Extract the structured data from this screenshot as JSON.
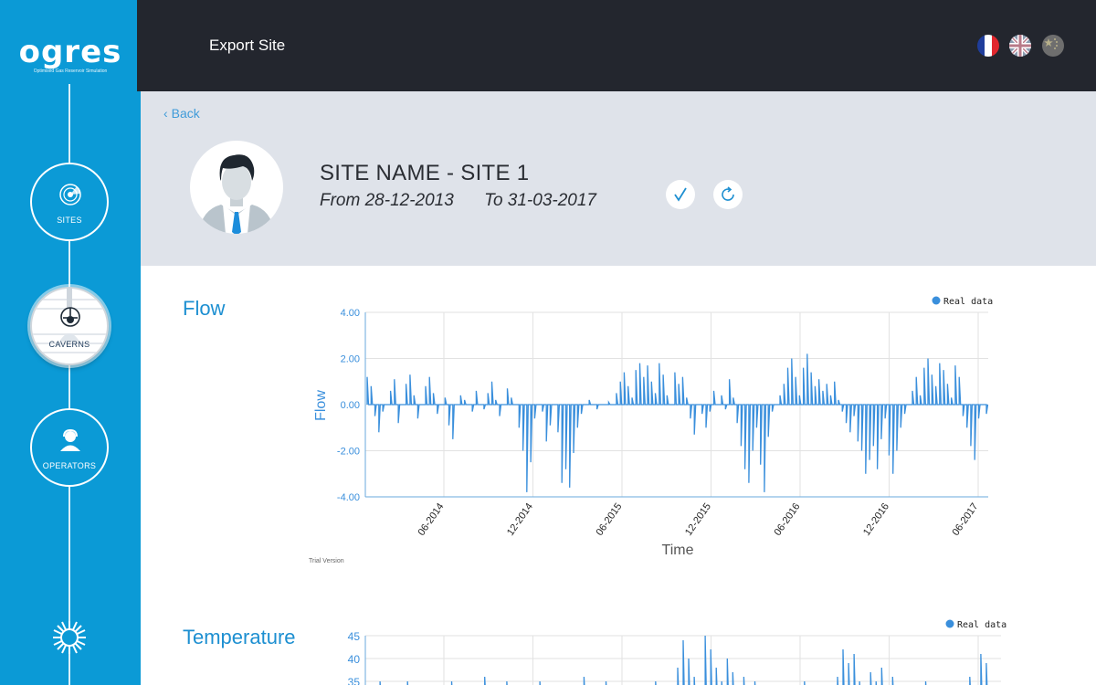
{
  "app": {
    "logo_text": "ogres",
    "logo_tagline": "Optimised        Gas Reservoir Simulation"
  },
  "sidebar": {
    "items": [
      {
        "label": "SITES",
        "icon": "radar-icon"
      },
      {
        "label": "CAVERNS",
        "icon": "cavern-icon"
      },
      {
        "label": "OPERATORS",
        "icon": "operator-icon"
      }
    ],
    "active": "CAVERNS"
  },
  "topbar": {
    "title": "Export Site",
    "languages": [
      "fr-flag-icon",
      "uk-flag-icon",
      "cn-flag-icon"
    ]
  },
  "header": {
    "back_label": "Back",
    "site_name": "SITE NAME - SITE 1",
    "from_label": "From 28-12-2013",
    "to_label": "To 31-03-2017"
  },
  "colors": {
    "sidebar": "#0b9ad6",
    "topbar": "#23262e",
    "header_panel": "#dfe3ea",
    "accent": "#1d8fd1",
    "series": "#3a8fdc"
  },
  "chart_data": [
    {
      "type": "line",
      "title": "Flow",
      "xlabel": "Time",
      "ylabel": "Flow",
      "legend": "Real data",
      "legend_position": "top-right",
      "footnote": "Trial Version",
      "x_ticks": [
        "06-2014",
        "12-2014",
        "06-2015",
        "12-2015",
        "06-2016",
        "12-2016",
        "06-2017"
      ],
      "y_ticks": [
        "4.00",
        "2.00",
        "0.00",
        "-2.00",
        "-4.00"
      ],
      "ylim": [
        -4,
        4
      ],
      "grid": true,
      "series": [
        {
          "name": "Real data",
          "x_range": [
            "2014-01",
            "2017-03"
          ],
          "values": [
            1.2,
            0.8,
            -0.5,
            -1.2,
            -0.3,
            0,
            0.6,
            1.1,
            -0.8,
            0,
            0.9,
            1.3,
            0.4,
            -0.6,
            0,
            0.8,
            1.2,
            0.5,
            -0.4,
            0,
            0.3,
            -0.9,
            -1.5,
            0,
            0.4,
            0.2,
            0,
            -0.3,
            0.6,
            0,
            -0.2,
            0.5,
            1.0,
            0.2,
            -0.5,
            0,
            0.7,
            0.3,
            0,
            -1.0,
            -2.0,
            -3.8,
            -2.5,
            -0.6,
            0,
            -0.3,
            -1.6,
            -0.9,
            0,
            -1.2,
            -3.4,
            -2.8,
            -3.6,
            -2.1,
            -1.0,
            -0.4,
            0,
            0.2,
            0,
            -0.2,
            0,
            0,
            0.1,
            0,
            0.5,
            1.0,
            1.4,
            0.8,
            0.3,
            1.5,
            1.8,
            1.2,
            1.7,
            1.0,
            0.5,
            1.8,
            1.3,
            0.4,
            0,
            1.4,
            0.9,
            1.2,
            0.3,
            -0.6,
            -1.3,
            0,
            -0.4,
            -1.0,
            -0.3,
            0.6,
            0,
            0.4,
            -0.2,
            1.1,
            0.3,
            -0.8,
            -1.8,
            -2.8,
            -3.4,
            -2.0,
            -1.0,
            -2.6,
            -3.8,
            -1.4,
            -0.3,
            0,
            0.4,
            0.9,
            1.6,
            2.0,
            1.2,
            0.4,
            1.6,
            2.2,
            1.4,
            0.8,
            1.1,
            0.6,
            0.9,
            0.4,
            1.0,
            0.2,
            -0.3,
            -0.8,
            -1.2,
            -0.5,
            -1.6,
            -2.0,
            -3.0,
            -2.4,
            -1.8,
            -2.8,
            -1.5,
            -0.6,
            -2.2,
            -3.0,
            -2.0,
            -1.0,
            -0.4,
            0,
            0.6,
            1.2,
            0.4,
            1.6,
            2.0,
            1.3,
            0.8,
            1.8,
            1.5,
            0.9,
            0.3,
            1.7,
            1.2,
            -0.5,
            -1.0,
            -1.8,
            -2.4,
            -0.6,
            0,
            -0.4
          ]
        }
      ]
    },
    {
      "type": "line",
      "title": "Temperature",
      "legend": "Real data",
      "legend_position": "top-right",
      "y_ticks": [
        "45",
        "40",
        "35"
      ],
      "grid": true,
      "series": [
        {
          "name": "Real data",
          "values": [
            30,
            31,
            35,
            32,
            30,
            34,
            31,
            35,
            30,
            32,
            30,
            34,
            31,
            30,
            33,
            35,
            30,
            32,
            31,
            34,
            30,
            36,
            33,
            30,
            32,
            35,
            31,
            34,
            30,
            33,
            30,
            35,
            32,
            31,
            30,
            34,
            30,
            33,
            31,
            36,
            30,
            32,
            30,
            35,
            31,
            30,
            34,
            30,
            32,
            30,
            33,
            31,
            35,
            30,
            32,
            31,
            38,
            44,
            40,
            36,
            33,
            45,
            42,
            38,
            35,
            40,
            37,
            34,
            36,
            33,
            35,
            31,
            30,
            34,
            31,
            32,
            30,
            33,
            31,
            35,
            30,
            32,
            30,
            34,
            31,
            36,
            42,
            39,
            41,
            35,
            33,
            37,
            35,
            38,
            34,
            36,
            33,
            31,
            30,
            32,
            31,
            35,
            30,
            34,
            31,
            32,
            30,
            33,
            31,
            36,
            34,
            41,
            39,
            31,
            30
          ]
        }
      ]
    }
  ]
}
